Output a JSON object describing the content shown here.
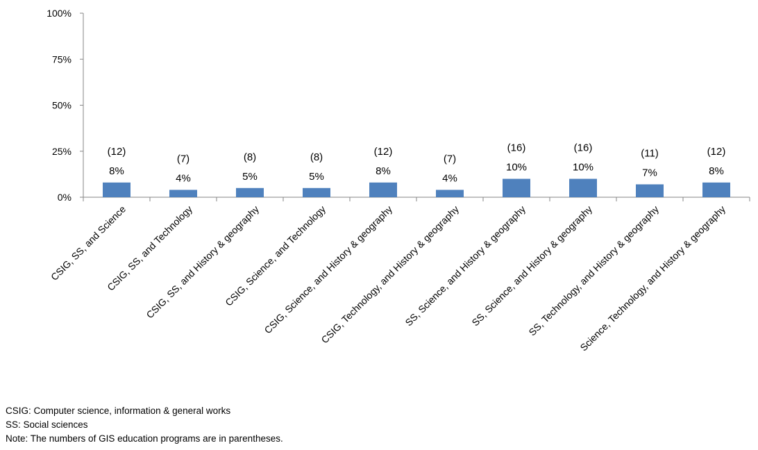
{
  "chart_data": {
    "type": "bar",
    "categories": [
      "CSIG, SS, and Science",
      "CSIG, SS, and Technology",
      "CSIG, SS, and History & geography",
      "CSIG, Science, and Technology",
      "CSIG, Science, and History & geography",
      "CSIG, Technology, and History & geography",
      "SS, Science, and History & geography",
      "SS, Science, and History & geography",
      "SS, Technology, and History & geography",
      "Science, Technology, and History & geography"
    ],
    "values": [
      8,
      4,
      5,
      5,
      8,
      4,
      10,
      10,
      7,
      8
    ],
    "value_labels": [
      "8%",
      "4%",
      "5%",
      "5%",
      "8%",
      "4%",
      "10%",
      "10%",
      "7%",
      "8%"
    ],
    "count_labels": [
      "(12)",
      "(7)",
      "(8)",
      "(8)",
      "(12)",
      "(7)",
      "(16)",
      "(16)",
      "(11)",
      "(12)"
    ],
    "y_ticks": [
      0,
      25,
      50,
      75,
      100
    ],
    "y_tick_labels": [
      "0%",
      "25%",
      "50%",
      "75%",
      "100%"
    ],
    "ylim": [
      0,
      100
    ],
    "bar_color": "#4f81bd",
    "grid": false,
    "legend": "none"
  },
  "notes": {
    "line1": "CSIG: Computer science, information & general works",
    "line2": "SS: Social sciences",
    "line3": "Note: The numbers of GIS education programs are in parentheses."
  }
}
